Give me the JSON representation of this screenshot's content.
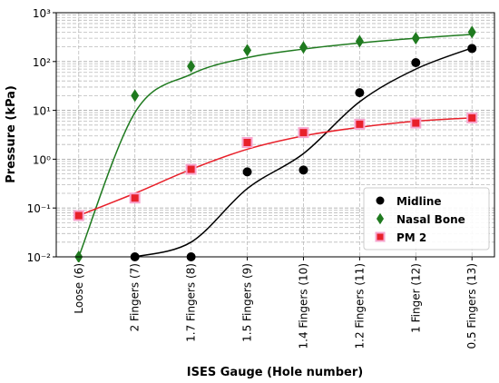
{
  "chart_data": {
    "type": "scatter",
    "x_label": "ISES Gauge (Hole number)",
    "y_label": "Pressure (kPa)",
    "categories": [
      "Loose (6)",
      "2 Fingers (7)",
      "1.7 Fingers (8)",
      "1.5 Fingers (9)",
      "1.4 Fingers (10)",
      "1.2 Fingers (11)",
      "1 Finger (12)",
      "0.5 Fingers (13)"
    ],
    "log_y": true,
    "ylim": [
      0.01,
      1000
    ],
    "yticks": [
      {
        "value": 0.01,
        "label": "10⁻²"
      },
      {
        "value": 0.1,
        "label": "10⁻¹"
      },
      {
        "value": 1,
        "label": "10⁰"
      },
      {
        "value": 10,
        "label": "10¹"
      },
      {
        "value": 100,
        "label": "10²"
      },
      {
        "value": 1000,
        "label": "10³"
      }
    ],
    "grid": true,
    "legend": "lower right",
    "series": [
      {
        "name": "Midline",
        "color": "#000000",
        "marker": "circle",
        "values": [
          null,
          0.01,
          0.01,
          0.55,
          0.6,
          23,
          95,
          185
        ],
        "fit": [
          null,
          0.01,
          0.02,
          0.25,
          1.3,
          15,
          70,
          190
        ]
      },
      {
        "name": "Nasal Bone",
        "color": "#1f7a1f",
        "marker": "diamond",
        "values": [
          0.01,
          20,
          80,
          170,
          195,
          260,
          300,
          400
        ],
        "fit": [
          0.01,
          9,
          55,
          120,
          180,
          240,
          300,
          360
        ]
      },
      {
        "name": "PM 2",
        "color": "#e8202a",
        "edge_color": "#f7a6cf",
        "marker": "square",
        "values": [
          0.07,
          0.16,
          0.62,
          2.2,
          3.5,
          5.2,
          5.5,
          7
        ],
        "fit": [
          0.07,
          0.2,
          0.62,
          1.6,
          3,
          4.5,
          6,
          7
        ]
      }
    ]
  }
}
